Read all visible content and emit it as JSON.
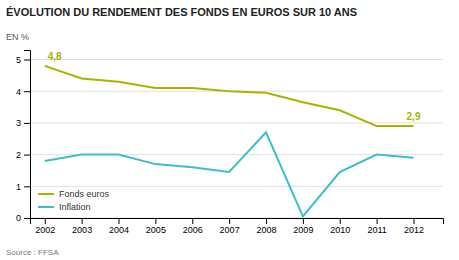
{
  "chart_data": {
    "type": "line",
    "title": "ÉVOLUTION DU RENDEMENT DES FONDS EN EUROS SUR 10 ANS",
    "y_label": "EN %",
    "source": "Source : FFSA",
    "x": [
      2002,
      2003,
      2004,
      2005,
      2006,
      2007,
      2008,
      2009,
      2010,
      2011,
      2012
    ],
    "series": [
      {
        "name": "Fonds euros",
        "color": "#a8b400",
        "values": [
          4.8,
          4.4,
          4.3,
          4.1,
          4.1,
          4.0,
          3.95,
          3.65,
          3.4,
          2.9,
          2.9
        ]
      },
      {
        "name": "Inflation",
        "color": "#3bbfc8",
        "values": [
          1.8,
          2.0,
          2.0,
          1.7,
          1.6,
          1.45,
          2.7,
          0.05,
          1.45,
          2.0,
          1.9
        ]
      }
    ],
    "annotations": [
      "4,8",
      "2,9"
    ],
    "xlim": [
      2001.6,
      2012.8
    ],
    "xticks": [
      2002,
      2003,
      2004,
      2005,
      2006,
      2007,
      2008,
      2009,
      2010,
      2011,
      2012
    ],
    "ylim": [
      0,
      5.3
    ],
    "yticks": [
      0,
      1,
      2,
      3,
      4,
      5
    ],
    "grid": "y",
    "legend": "lower left"
  }
}
